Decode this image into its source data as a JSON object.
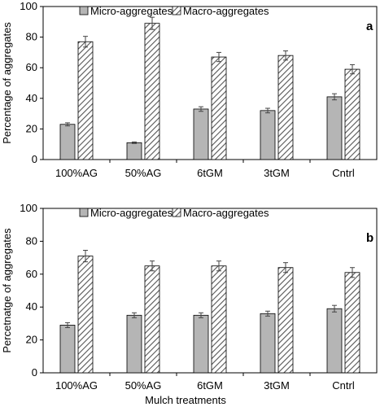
{
  "colors": {
    "micro_fill": "#b5b5b5",
    "macro_hatch": "#555555",
    "frame": "#000000"
  },
  "chart_data": [
    {
      "type": "bar",
      "panel_label": "a",
      "ylabel": "Percentage of aggregates",
      "xlabel": "",
      "ylim": [
        0,
        100
      ],
      "yticks": [
        0,
        20,
        40,
        60,
        80,
        100
      ],
      "categories": [
        "100%AG",
        "50%AG",
        "6tGM",
        "3tGM",
        "Cntrl"
      ],
      "legend_position": "top",
      "series": [
        {
          "name": "Micro-aggregates",
          "values": [
            23,
            11,
            33,
            32,
            41
          ],
          "errors": [
            1,
            0.5,
            1.5,
            1.5,
            2
          ]
        },
        {
          "name": "Macro-aggregates",
          "values": [
            77,
            89,
            67,
            68,
            59
          ],
          "errors": [
            3.5,
            4,
            3,
            3,
            3
          ]
        }
      ]
    },
    {
      "type": "bar",
      "panel_label": "b",
      "ylabel": "Percetnatge of aggregates",
      "xlabel": "Mulch treatments",
      "ylim": [
        0,
        100
      ],
      "yticks": [
        0,
        20,
        40,
        60,
        80,
        100
      ],
      "categories": [
        "100%AG",
        "50%AG",
        "6tGM",
        "3tGM",
        "Cntrl"
      ],
      "legend_position": "top",
      "series": [
        {
          "name": "Micro-aggregates",
          "values": [
            29,
            35,
            35,
            36,
            39
          ],
          "errors": [
            1.5,
            1.5,
            1.5,
            1.5,
            2
          ]
        },
        {
          "name": "Macro-aggregates",
          "values": [
            71,
            65,
            65,
            64,
            61
          ],
          "errors": [
            3.5,
            3,
            3,
            3,
            3
          ]
        }
      ]
    }
  ]
}
